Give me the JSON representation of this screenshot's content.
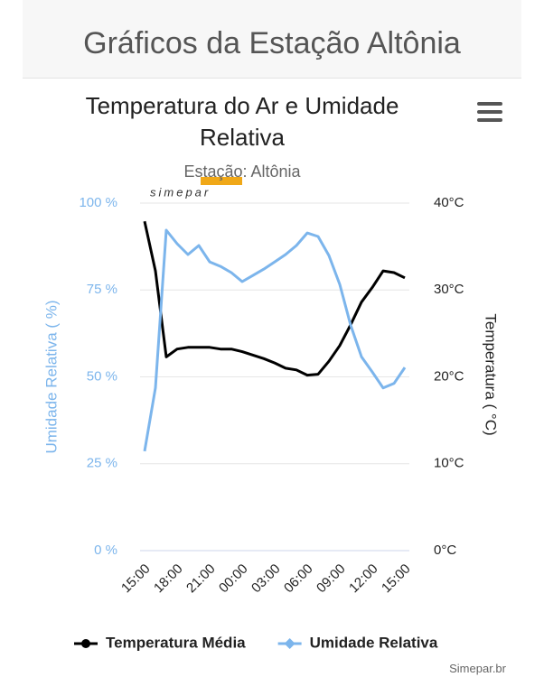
{
  "header": {
    "title": "Gráficos da Estação Altônia"
  },
  "logo": "simepar",
  "footer": "Simepar.br",
  "chart_data": {
    "type": "line",
    "title": "Temperatura do Ar e Umidade Relativa",
    "subtitle": "Estação: Altônia",
    "categories": [
      "15:00",
      null,
      null,
      "18:00",
      null,
      null,
      "21:00",
      null,
      null,
      "00:00",
      null,
      null,
      "03:00",
      null,
      null,
      "06:00",
      null,
      null,
      "09:00",
      null,
      null,
      "12:00",
      null,
      null,
      "15:00"
    ],
    "ylabel": "Umidade Relativa ( %)",
    "y2label": "Temperatura ( °C)",
    "ylim": [
      0,
      100
    ],
    "yticks": [
      {
        "value": 0,
        "label": "0 %"
      },
      {
        "value": 25,
        "label": "25 %"
      },
      {
        "value": 50,
        "label": "50 %"
      },
      {
        "value": 75,
        "label": "75 %"
      },
      {
        "value": 100,
        "label": "100 %"
      }
    ],
    "y2lim": [
      0,
      40
    ],
    "y2ticks": [
      {
        "value": 0,
        "label": "0°C"
      },
      {
        "value": 10,
        "label": "10°C"
      },
      {
        "value": 20,
        "label": "20°C"
      },
      {
        "value": 30,
        "label": "30°C"
      },
      {
        "value": 40,
        "label": "40°C"
      }
    ],
    "grid": true,
    "legend": "bottom",
    "series": [
      {
        "name": "Temperatura Média",
        "color": "#000000",
        "axis": "y2",
        "values": [
          37.9,
          32.2,
          22.3,
          23.2,
          23.4,
          23.4,
          23.4,
          23.2,
          23.2,
          22.9,
          22.5,
          22.1,
          21.6,
          21.0,
          20.8,
          20.2,
          20.3,
          21.8,
          23.6,
          26.0,
          28.6,
          30.3,
          32.2,
          32.0,
          31.4
        ]
      },
      {
        "name": "Umidade Relativa",
        "color": "#7cb5ec",
        "axis": "y",
        "values": [
          28.6,
          46.8,
          92.2,
          88.3,
          85.2,
          87.8,
          83.1,
          81.8,
          80.0,
          77.4,
          79.2,
          81.0,
          83.1,
          85.2,
          87.8,
          91.4,
          90.4,
          84.9,
          76.6,
          64.9,
          55.8,
          51.4,
          46.8,
          48.1,
          52.7
        ]
      }
    ]
  }
}
